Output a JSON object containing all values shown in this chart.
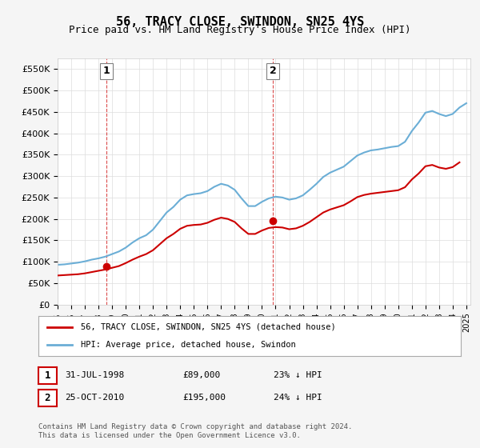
{
  "title": "56, TRACY CLOSE, SWINDON, SN25 4YS",
  "subtitle": "Price paid vs. HM Land Registry's House Price Index (HPI)",
  "ylim": [
    0,
    575000
  ],
  "yticks": [
    0,
    50000,
    100000,
    150000,
    200000,
    250000,
    300000,
    350000,
    400000,
    450000,
    500000,
    550000
  ],
  "ytick_labels": [
    "£0",
    "£50K",
    "£100K",
    "£150K",
    "£200K",
    "£250K",
    "£300K",
    "£350K",
    "£400K",
    "£450K",
    "£500K",
    "£550K"
  ],
  "hpi_color": "#6baed6",
  "price_color": "#cc0000",
  "transaction1_year": 1998.58,
  "transaction1_price": 89000,
  "transaction1_label": "1",
  "transaction2_year": 2010.81,
  "transaction2_price": 195000,
  "transaction2_label": "2",
  "legend_line1": "56, TRACY CLOSE, SWINDON, SN25 4YS (detached house)",
  "legend_line2": "HPI: Average price, detached house, Swindon",
  "note1_label": "1",
  "note1_date": "31-JUL-1998",
  "note1_price": "£89,000",
  "note1_hpi": "23% ↓ HPI",
  "note2_label": "2",
  "note2_date": "25-OCT-2010",
  "note2_price": "£195,000",
  "note2_hpi": "24% ↓ HPI",
  "copyright": "Contains HM Land Registry data © Crown copyright and database right 2024.\nThis data is licensed under the Open Government Licence v3.0.",
  "background_color": "#f5f5f5",
  "plot_background": "#ffffff",
  "grid_color": "#dddddd",
  "hpi_data_x": [
    1995,
    1995.5,
    1996,
    1996.5,
    1997,
    1997.5,
    1998,
    1998.5,
    1999,
    1999.5,
    2000,
    2000.5,
    2001,
    2001.5,
    2002,
    2002.5,
    2003,
    2003.5,
    2004,
    2004.5,
    2005,
    2005.5,
    2006,
    2006.5,
    2007,
    2007.5,
    2008,
    2008.5,
    2009,
    2009.5,
    2010,
    2010.5,
    2011,
    2011.5,
    2012,
    2012.5,
    2013,
    2013.5,
    2014,
    2014.5,
    2015,
    2015.5,
    2016,
    2016.5,
    2017,
    2017.5,
    2018,
    2018.5,
    2019,
    2019.5,
    2020,
    2020.5,
    2021,
    2021.5,
    2022,
    2022.5,
    2023,
    2023.5,
    2024,
    2024.5,
    2025
  ],
  "hpi_data_y": [
    93000,
    94000,
    96000,
    98000,
    101000,
    105000,
    108000,
    112000,
    118000,
    124000,
    133000,
    145000,
    155000,
    162000,
    175000,
    195000,
    215000,
    228000,
    245000,
    255000,
    258000,
    260000,
    265000,
    275000,
    282000,
    278000,
    268000,
    248000,
    230000,
    230000,
    240000,
    248000,
    252000,
    250000,
    245000,
    248000,
    255000,
    268000,
    282000,
    298000,
    308000,
    315000,
    322000,
    335000,
    348000,
    355000,
    360000,
    362000,
    365000,
    368000,
    370000,
    380000,
    405000,
    425000,
    448000,
    452000,
    445000,
    440000,
    445000,
    460000,
    470000
  ],
  "price_data_x": [
    1995,
    1995.5,
    1996,
    1996.5,
    1997,
    1997.5,
    1998,
    1998.5,
    1999,
    1999.5,
    2000,
    2000.5,
    2001,
    2001.5,
    2002,
    2002.5,
    2003,
    2003.5,
    2004,
    2004.5,
    2005,
    2005.5,
    2006,
    2006.5,
    2007,
    2007.5,
    2008,
    2008.5,
    2009,
    2009.5,
    2010,
    2010.5,
    2011,
    2011.5,
    2012,
    2012.5,
    2013,
    2013.5,
    2014,
    2014.5,
    2015,
    2015.5,
    2016,
    2016.5,
    2017,
    2017.5,
    2018,
    2018.5,
    2019,
    2019.5,
    2020,
    2020.5,
    2021,
    2021.5,
    2022,
    2022.5,
    2023,
    2023.5,
    2024,
    2024.5
  ],
  "price_data_y": [
    68000,
    69000,
    70000,
    71000,
    73000,
    76000,
    79000,
    82000,
    86000,
    90000,
    97000,
    105000,
    112000,
    118000,
    127000,
    141000,
    155000,
    165000,
    177000,
    184000,
    186000,
    187000,
    191000,
    198000,
    203000,
    200000,
    193000,
    178000,
    165000,
    165000,
    173000,
    179000,
    181000,
    180000,
    176000,
    178000,
    184000,
    193000,
    204000,
    215000,
    222000,
    227000,
    232000,
    241000,
    251000,
    256000,
    259000,
    261000,
    263000,
    265000,
    267000,
    274000,
    292000,
    306000,
    323000,
    326000,
    320000,
    317000,
    321000,
    332000
  ]
}
